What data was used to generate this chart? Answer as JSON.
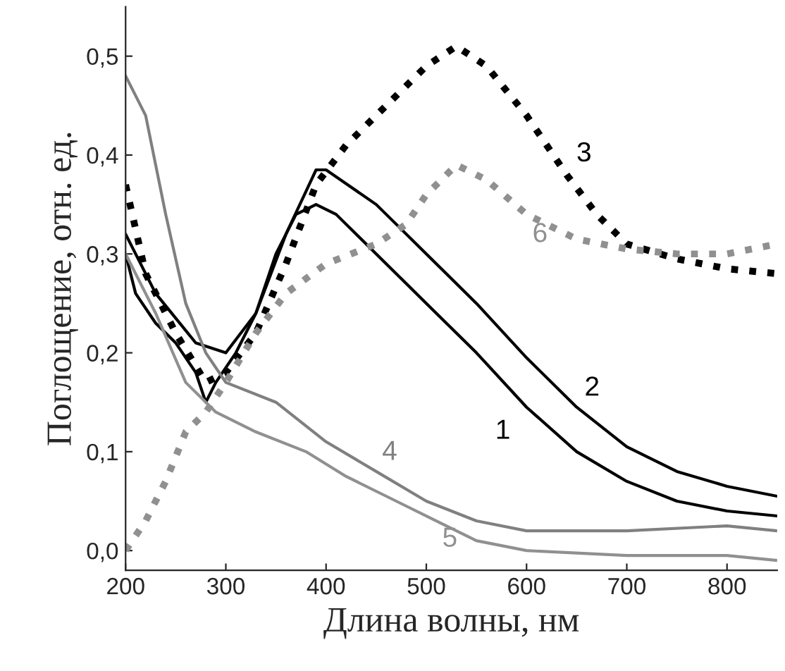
{
  "chart_data": {
    "type": "line",
    "xlabel": "Длина волны, нм",
    "ylabel": "Поглощение, отн. ед.",
    "xlim": [
      200,
      850
    ],
    "ylim": [
      -0.02,
      0.55
    ],
    "xticks": [
      200,
      300,
      400,
      500,
      600,
      700,
      800
    ],
    "yticks": [
      {
        "value": 0,
        "label": "0,0"
      },
      {
        "value": 0.1,
        "label": "0,1"
      },
      {
        "value": 0.2,
        "label": "0,2"
      },
      {
        "value": 0.3,
        "label": "0,3"
      },
      {
        "value": 0.4,
        "label": "0,4"
      },
      {
        "value": 0.5,
        "label": "0,5"
      }
    ],
    "grid": false,
    "legend": false,
    "series": [
      {
        "name": "1",
        "color": "#000000",
        "line_style": "solid",
        "x": [
          200,
          210,
          230,
          250,
          270,
          280,
          290,
          310,
          330,
          350,
          370,
          390,
          410,
          450,
          500,
          550,
          600,
          650,
          700,
          750,
          800,
          850
        ],
        "values": [
          0.3,
          0.26,
          0.23,
          0.21,
          0.18,
          0.15,
          0.17,
          0.2,
          0.24,
          0.3,
          0.34,
          0.35,
          0.34,
          0.3,
          0.25,
          0.2,
          0.145,
          0.1,
          0.07,
          0.05,
          0.04,
          0.035
        ]
      },
      {
        "name": "2",
        "color": "#000000",
        "line_style": "solid",
        "x": [
          200,
          230,
          270,
          300,
          330,
          360,
          390,
          400,
          450,
          500,
          550,
          600,
          650,
          700,
          750,
          800,
          850
        ],
        "values": [
          0.32,
          0.26,
          0.21,
          0.2,
          0.24,
          0.32,
          0.385,
          0.385,
          0.35,
          0.3,
          0.25,
          0.195,
          0.145,
          0.105,
          0.08,
          0.065,
          0.055
        ]
      },
      {
        "name": "3",
        "color": "#000000",
        "line_style": "dotted",
        "x": [
          200,
          220,
          250,
          280,
          300,
          330,
          360,
          390,
          420,
          450,
          480,
          500,
          530,
          560,
          600,
          640,
          670,
          700,
          750,
          800,
          850
        ],
        "values": [
          0.37,
          0.28,
          0.22,
          0.17,
          0.18,
          0.22,
          0.29,
          0.37,
          0.41,
          0.44,
          0.47,
          0.49,
          0.51,
          0.49,
          0.44,
          0.38,
          0.34,
          0.31,
          0.295,
          0.285,
          0.28
        ]
      },
      {
        "name": "4",
        "color": "#808080",
        "line_style": "solid",
        "x": [
          200,
          220,
          240,
          260,
          280,
          300,
          350,
          400,
          450,
          500,
          550,
          600,
          700,
          800,
          850
        ],
        "values": [
          0.48,
          0.44,
          0.34,
          0.25,
          0.2,
          0.17,
          0.15,
          0.11,
          0.08,
          0.05,
          0.03,
          0.02,
          0.02,
          0.025,
          0.02
        ]
      },
      {
        "name": "5",
        "color": "#909090",
        "line_style": "solid",
        "x": [
          200,
          230,
          260,
          290,
          330,
          380,
          420,
          470,
          510,
          550,
          600,
          700,
          800,
          850
        ],
        "values": [
          0.3,
          0.24,
          0.17,
          0.14,
          0.12,
          0.1,
          0.075,
          0.05,
          0.03,
          0.01,
          0.0,
          -0.005,
          -0.005,
          -0.01
        ]
      },
      {
        "name": "6",
        "color": "#909090",
        "line_style": "dotted",
        "x": [
          200,
          220,
          240,
          260,
          280,
          300,
          330,
          360,
          400,
          450,
          480,
          500,
          530,
          560,
          600,
          650,
          700,
          750,
          800,
          850
        ],
        "values": [
          0.0,
          0.03,
          0.07,
          0.12,
          0.14,
          0.17,
          0.22,
          0.26,
          0.29,
          0.31,
          0.33,
          0.36,
          0.39,
          0.375,
          0.34,
          0.315,
          0.305,
          0.3,
          0.3,
          0.31
        ]
      }
    ]
  }
}
